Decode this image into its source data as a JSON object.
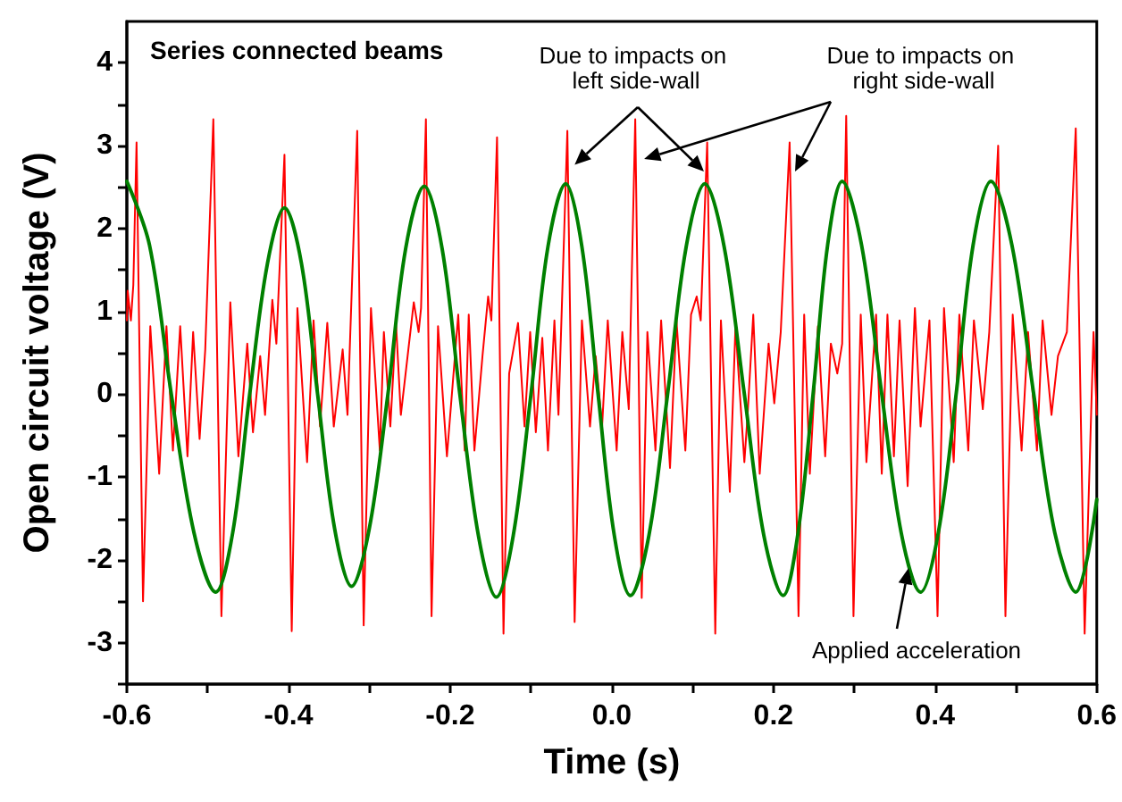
{
  "chart_data": {
    "type": "line",
    "title": "Series connected beams",
    "xlabel": "Time (s)",
    "ylabel": "Open circuit voltage (V)",
    "xlim": [
      -0.6,
      0.6
    ],
    "xticks": [
      -0.6,
      {
        "value": -0.5,
        "label": null
      },
      -0.4,
      {
        "value": -0.3,
        "label": null
      },
      -0.2,
      {
        "value": -0.1,
        "label": null
      },
      {
        "value": 0,
        "label": "0.0"
      },
      {
        "value": 0.1,
        "label": null
      },
      0.2,
      {
        "value": 0.3,
        "label": null
      },
      0.4,
      {
        "value": 0.5,
        "label": null
      },
      0.6
    ],
    "ylim": [
      -3.5,
      4.5
    ],
    "yticks": [
      {
        "value": -3.5,
        "label": null
      },
      -3,
      {
        "value": -2.5,
        "label": null
      },
      -2,
      {
        "value": -1.5,
        "label": null
      },
      -1,
      {
        "value": -0.5,
        "label": null
      },
      0,
      {
        "value": 0.5,
        "label": null
      },
      1,
      {
        "value": 1.5,
        "label": null
      },
      2,
      {
        "value": 2.5,
        "label": null
      },
      3,
      {
        "value": 3.5,
        "label": null
      },
      4
    ],
    "grid": false,
    "marker": "none",
    "line_style": "solid",
    "annotations": [
      {
        "text": "Due to impacts on left side-wall",
        "x": -0.046,
        "y": 2.77
      },
      {
        "text": "Due to impacts on right side-wall",
        "x": 0.04,
        "y": 2.84
      },
      {
        "text": "Applied acceleration",
        "x": 0.367,
        "y": -2.1
      }
    ],
    "series": [
      {
        "color": "#ff0000",
        "x": [
          -0.6,
          -0.599,
          -0.595,
          -0.592,
          -0.588,
          -0.58,
          -0.571,
          -0.56,
          -0.551,
          -0.543,
          -0.534,
          -0.525,
          -0.518,
          -0.51,
          -0.503,
          -0.493,
          -0.483,
          -0.472,
          -0.462,
          -0.451,
          -0.444,
          -0.435,
          -0.429,
          -0.42,
          -0.415,
          -0.405,
          -0.396,
          -0.389,
          -0.377,
          -0.369,
          -0.361,
          -0.352,
          -0.344,
          -0.333,
          -0.327,
          -0.315,
          -0.307,
          -0.298,
          -0.287,
          -0.282,
          -0.274,
          -0.267,
          -0.261,
          -0.245,
          -0.239,
          -0.236,
          -0.23,
          -0.223,
          -0.215,
          -0.204,
          -0.19,
          -0.182,
          -0.177,
          -0.17,
          -0.16,
          -0.153,
          -0.149,
          -0.142,
          -0.134,
          -0.127,
          -0.116,
          -0.108,
          -0.101,
          -0.094,
          -0.086,
          -0.079,
          -0.071,
          -0.066,
          -0.055,
          -0.046,
          -0.037,
          -0.027,
          -0.02,
          -0.012,
          -0.005,
          0.006,
          0.013,
          0.021,
          0.029,
          0.037,
          0.044,
          0.054,
          0.061,
          0.072,
          0.08,
          0.091,
          0.098,
          0.105,
          0.11,
          0.118,
          0.128,
          0.135,
          0.146,
          0.153,
          0.164,
          0.168,
          0.175,
          0.183,
          0.194,
          0.201,
          0.209,
          0.22,
          0.231,
          0.238,
          0.245,
          0.255,
          0.264,
          0.271,
          0.279,
          0.285,
          0.29,
          0.299,
          0.308,
          0.315,
          0.327,
          0.334,
          0.341,
          0.349,
          0.356,
          0.366,
          0.375,
          0.382,
          0.393,
          0.403,
          0.411,
          0.423,
          0.43,
          0.441,
          0.448,
          0.459,
          0.467,
          0.478,
          0.487,
          0.496,
          0.507,
          0.515,
          0.526,
          0.533,
          0.544,
          0.552,
          0.563,
          0.574,
          0.585,
          0.596,
          0.6
        ],
        "values": [
          0.89,
          1.25,
          0.89,
          1.32,
          3.04,
          -2.5,
          0.82,
          -0.96,
          0.82,
          -0.68,
          0.82,
          -0.75,
          0.75,
          -0.54,
          0.54,
          3.32,
          -2.68,
          1.11,
          -0.75,
          0.61,
          -0.46,
          0.46,
          -0.25,
          1.14,
          0.61,
          2.89,
          -2.86,
          1.04,
          -0.82,
          0.89,
          -0.39,
          0.86,
          -0.39,
          0.54,
          -0.25,
          3.18,
          -2.79,
          1.04,
          -0.68,
          0.75,
          -0.39,
          0.86,
          -0.25,
          1.11,
          0.75,
          1.04,
          3.32,
          -2.68,
          0.82,
          -0.75,
          0.96,
          -0.68,
          0.96,
          -0.68,
          0.46,
          1.18,
          0.89,
          3.1,
          -2.89,
          0.25,
          0.86,
          -0.39,
          0.75,
          -0.46,
          0.68,
          -0.68,
          0.89,
          -0.25,
          3.18,
          -2.75,
          0.89,
          -0.39,
          0.46,
          -0.39,
          0.89,
          -0.68,
          0.75,
          -0.18,
          3.32,
          -2.46,
          0.75,
          -0.68,
          0.89,
          -0.89,
          0.89,
          -0.68,
          0.96,
          1.18,
          0.89,
          3.04,
          -2.89,
          0.89,
          -1.18,
          0.82,
          -0.82,
          -0.25,
          0.96,
          -0.96,
          0.61,
          -0.11,
          0.75,
          3.04,
          -2.68,
          0.96,
          -0.96,
          0.82,
          -0.75,
          0.61,
          0.25,
          0.61,
          3.36,
          -2.68,
          0.96,
          -0.82,
          0.96,
          -0.96,
          0.96,
          -0.75,
          0.89,
          -1.11,
          1.04,
          -0.39,
          0.89,
          -2.68,
          1.04,
          -0.82,
          0.96,
          -0.68,
          0.89,
          -0.18,
          0.75,
          3.0,
          -2.68,
          0.96,
          -0.68,
          0.75,
          -0.68,
          0.89,
          -0.25,
          0.46,
          0.75,
          3.21,
          -2.89,
          0.75,
          -0.25
        ]
      },
      {
        "color": "#008000",
        "x": [
          -0.6,
          -0.572,
          -0.545,
          -0.517,
          -0.49,
          -0.469,
          -0.448,
          -0.426,
          -0.405,
          -0.384,
          -0.364,
          -0.343,
          -0.322,
          -0.3,
          -0.277,
          -0.255,
          -0.232,
          -0.21,
          -0.188,
          -0.165,
          -0.143,
          -0.122,
          -0.1,
          -0.079,
          -0.057,
          -0.037,
          -0.017,
          0.003,
          0.023,
          0.046,
          0.069,
          0.092,
          0.115,
          0.139,
          0.164,
          0.188,
          0.212,
          0.23,
          0.249,
          0.267,
          0.285,
          0.309,
          0.334,
          0.358,
          0.382,
          0.404,
          0.426,
          0.447,
          0.469,
          0.495,
          0.522,
          0.548,
          0.574,
          0.6
        ],
        "values": [
          2.57,
          1.8,
          0,
          -1.67,
          -2.39,
          -1.67,
          0,
          1.58,
          2.25,
          1.58,
          0,
          -1.62,
          -2.32,
          -1.62,
          0,
          1.76,
          2.51,
          1.76,
          0,
          -1.71,
          -2.45,
          -1.71,
          0,
          1.78,
          2.54,
          1.78,
          0,
          -1.7,
          -2.43,
          -1.7,
          0,
          1.78,
          2.54,
          1.78,
          0,
          -1.7,
          -2.43,
          -1.7,
          0,
          1.8,
          2.57,
          1.8,
          0,
          -1.67,
          -2.39,
          -1.67,
          0,
          1.8,
          2.57,
          1.8,
          0,
          -1.67,
          -2.39,
          -1.27
        ]
      }
    ]
  }
}
